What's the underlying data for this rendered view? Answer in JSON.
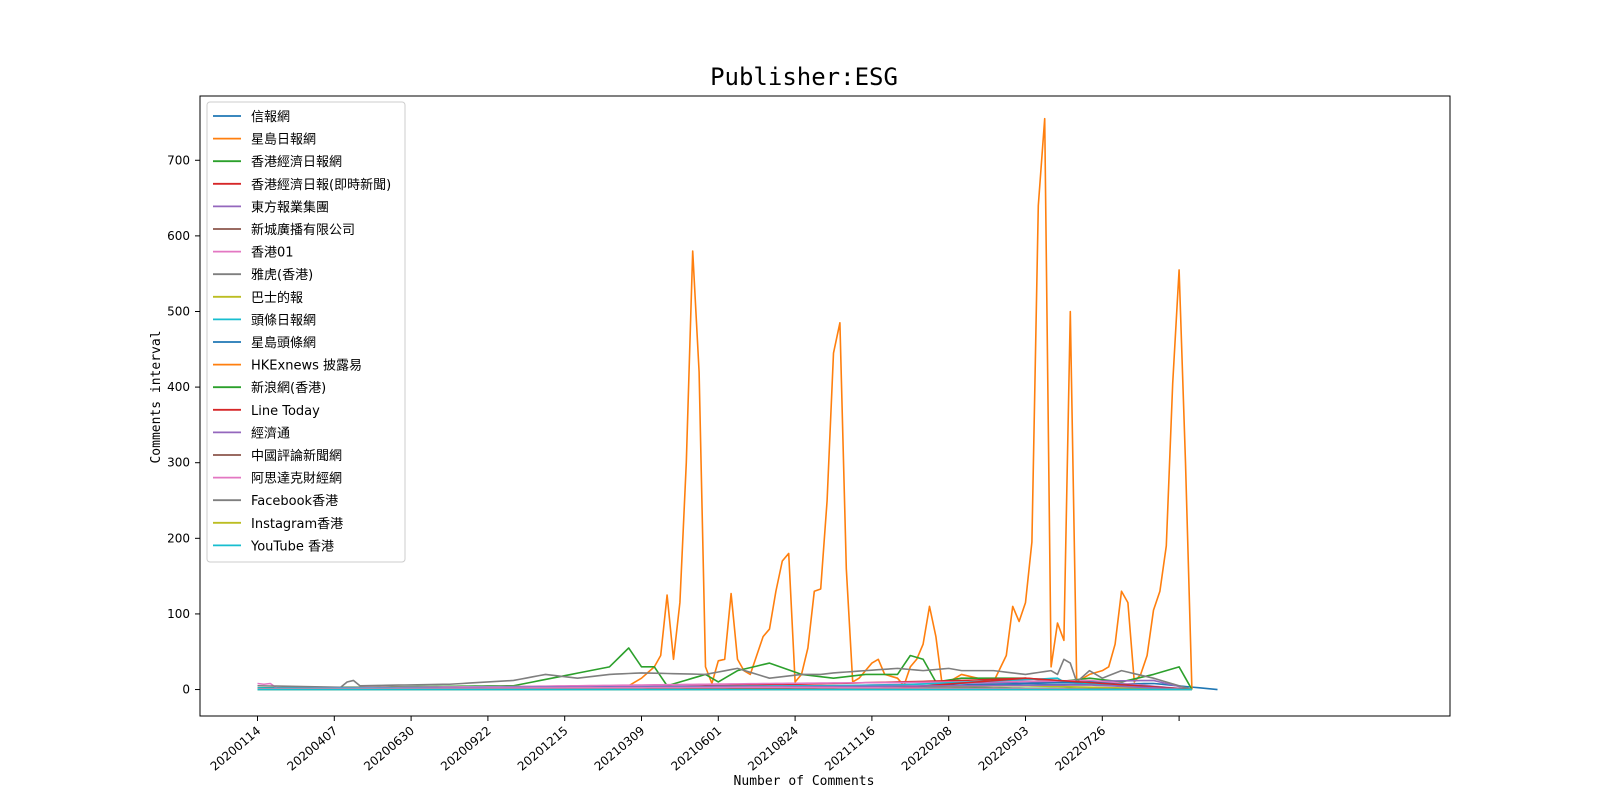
{
  "chart_data": {
    "type": "line",
    "title": "Publisher:ESG",
    "xlabel": "Number of Comments",
    "ylabel": "Comments interval",
    "ylim": [
      -35,
      785
    ],
    "yticks": [
      0,
      100,
      200,
      300,
      400,
      500,
      600,
      700
    ],
    "x_tick_labels": [
      "20200114",
      "20200407",
      "20200630",
      "20200922",
      "20201215",
      "20210309",
      "20210601",
      "20210824",
      "20211116",
      "20220208",
      "20220503",
      "20220726",
      ""
    ],
    "x_point_count": 151,
    "grid": false,
    "legend": "upper left",
    "colors": [
      "#1f77b4",
      "#ff7f0e",
      "#2ca02c",
      "#d62728",
      "#9467bd",
      "#8c564b",
      "#e377c2",
      "#7f7f7f",
      "#bcbd22",
      "#17becf"
    ],
    "series": [
      {
        "name": "信報網",
        "values": [
          [
            0,
            2
          ],
          [
            30,
            2
          ],
          [
            60,
            4
          ],
          [
            90,
            3
          ],
          [
            100,
            2
          ],
          [
            120,
            6
          ],
          [
            140,
            8
          ],
          [
            150,
            0
          ]
        ]
      },
      {
        "name": "星島日報網",
        "values": [
          [
            0,
            1
          ],
          [
            55,
            2
          ],
          [
            58,
            5
          ],
          [
            60,
            15
          ],
          [
            62,
            30
          ],
          [
            63,
            45
          ],
          [
            64,
            125
          ],
          [
            65,
            40
          ],
          [
            66,
            115
          ],
          [
            67,
            300
          ],
          [
            68,
            580
          ],
          [
            69,
            420
          ],
          [
            70,
            30
          ],
          [
            71,
            8
          ],
          [
            72,
            38
          ],
          [
            73,
            40
          ],
          [
            74,
            127
          ],
          [
            75,
            40
          ],
          [
            76,
            25
          ],
          [
            77,
            20
          ],
          [
            78,
            45
          ],
          [
            79,
            70
          ],
          [
            80,
            80
          ],
          [
            81,
            130
          ],
          [
            82,
            170
          ],
          [
            83,
            180
          ],
          [
            84,
            10
          ],
          [
            85,
            20
          ],
          [
            86,
            55
          ],
          [
            87,
            130
          ],
          [
            88,
            133
          ],
          [
            89,
            250
          ],
          [
            90,
            445
          ],
          [
            91,
            485
          ],
          [
            92,
            160
          ],
          [
            93,
            10
          ],
          [
            94,
            15
          ],
          [
            96,
            35
          ],
          [
            97,
            40
          ],
          [
            98,
            20
          ],
          [
            100,
            15
          ],
          [
            101,
            5
          ],
          [
            102,
            30
          ],
          [
            103,
            40
          ],
          [
            104,
            60
          ],
          [
            105,
            110
          ],
          [
            106,
            70
          ],
          [
            107,
            5
          ],
          [
            110,
            20
          ],
          [
            115,
            10
          ],
          [
            117,
            45
          ],
          [
            118,
            110
          ],
          [
            119,
            90
          ],
          [
            120,
            115
          ],
          [
            121,
            195
          ],
          [
            122,
            640
          ],
          [
            123,
            755
          ],
          [
            124,
            30
          ],
          [
            125,
            88
          ],
          [
            126,
            65
          ],
          [
            127,
            500
          ],
          [
            128,
            10
          ],
          [
            130,
            20
          ],
          [
            132,
            25
          ],
          [
            133,
            30
          ],
          [
            134,
            60
          ],
          [
            135,
            130
          ],
          [
            136,
            115
          ],
          [
            137,
            10
          ],
          [
            138,
            20
          ],
          [
            139,
            45
          ],
          [
            140,
            105
          ],
          [
            141,
            130
          ],
          [
            142,
            190
          ],
          [
            143,
            405
          ],
          [
            144,
            555
          ],
          [
            145,
            300
          ],
          [
            146,
            0
          ]
        ]
      },
      {
        "name": "香港經濟日報網",
        "values": [
          [
            0,
            2
          ],
          [
            40,
            5
          ],
          [
            52,
            25
          ],
          [
            55,
            30
          ],
          [
            58,
            55
          ],
          [
            60,
            30
          ],
          [
            62,
            30
          ],
          [
            64,
            5
          ],
          [
            70,
            20
          ],
          [
            72,
            10
          ],
          [
            75,
            25
          ],
          [
            80,
            35
          ],
          [
            85,
            20
          ],
          [
            90,
            15
          ],
          [
            95,
            20
          ],
          [
            100,
            20
          ],
          [
            102,
            45
          ],
          [
            104,
            40
          ],
          [
            106,
            10
          ],
          [
            110,
            15
          ],
          [
            120,
            15
          ],
          [
            125,
            10
          ],
          [
            130,
            15
          ],
          [
            135,
            10
          ],
          [
            140,
            20
          ],
          [
            144,
            30
          ],
          [
            146,
            0
          ]
        ]
      },
      {
        "name": "香港經濟日報(即時新聞)",
        "values": [
          [
            0,
            1
          ],
          [
            50,
            2
          ],
          [
            90,
            8
          ],
          [
            110,
            12
          ],
          [
            120,
            15
          ],
          [
            130,
            8
          ],
          [
            146,
            0
          ]
        ]
      },
      {
        "name": "東方報業集團",
        "values": [
          [
            0,
            1
          ],
          [
            60,
            4
          ],
          [
            90,
            5
          ],
          [
            120,
            10
          ],
          [
            140,
            12
          ],
          [
            146,
            0
          ]
        ]
      },
      {
        "name": "新城廣播有限公司",
        "values": [
          [
            0,
            1
          ],
          [
            70,
            2
          ],
          [
            100,
            3
          ],
          [
            146,
            0
          ]
        ]
      },
      {
        "name": "香港01",
        "values": [
          [
            0,
            8
          ],
          [
            1,
            7
          ],
          [
            2,
            8
          ],
          [
            3,
            2
          ],
          [
            40,
            4
          ],
          [
            80,
            8
          ],
          [
            110,
            10
          ],
          [
            130,
            12
          ],
          [
            146,
            0
          ]
        ]
      },
      {
        "name": "雅虎(香港)",
        "values": [
          [
            0,
            5
          ],
          [
            13,
            3
          ],
          [
            14,
            10
          ],
          [
            15,
            12
          ],
          [
            16,
            5
          ],
          [
            30,
            7
          ],
          [
            40,
            12
          ],
          [
            45,
            20
          ],
          [
            50,
            15
          ],
          [
            55,
            20
          ],
          [
            60,
            22
          ],
          [
            70,
            20
          ],
          [
            75,
            28
          ],
          [
            80,
            15
          ],
          [
            85,
            20
          ],
          [
            88,
            20
          ],
          [
            90,
            22
          ],
          [
            95,
            25
          ],
          [
            100,
            28
          ],
          [
            104,
            25
          ],
          [
            108,
            28
          ],
          [
            110,
            25
          ],
          [
            115,
            25
          ],
          [
            120,
            20
          ],
          [
            124,
            25
          ],
          [
            125,
            20
          ],
          [
            126,
            40
          ],
          [
            127,
            35
          ],
          [
            128,
            10
          ],
          [
            130,
            25
          ],
          [
            132,
            15
          ],
          [
            135,
            25
          ],
          [
            140,
            15
          ],
          [
            146,
            0
          ]
        ]
      },
      {
        "name": "巴士的報",
        "values": [
          [
            0,
            1
          ],
          [
            80,
            3
          ],
          [
            120,
            5
          ],
          [
            146,
            0
          ]
        ]
      },
      {
        "name": "頭條日報網",
        "values": [
          [
            0,
            2
          ],
          [
            60,
            3
          ],
          [
            100,
            6
          ],
          [
            125,
            15
          ],
          [
            126,
            10
          ],
          [
            146,
            0
          ]
        ]
      },
      {
        "name": "星島頭條網",
        "values": [
          [
            0,
            1
          ],
          [
            50,
            3
          ],
          [
            100,
            4
          ],
          [
            130,
            10
          ],
          [
            146,
            0
          ]
        ]
      },
      {
        "name": "HKExnews 披露易",
        "values": [
          [
            0,
            1
          ],
          [
            100,
            2
          ],
          [
            146,
            0
          ]
        ]
      },
      {
        "name": "新浪網(香港)",
        "values": [
          [
            0,
            1
          ],
          [
            60,
            2
          ],
          [
            100,
            3
          ],
          [
            146,
            0
          ]
        ]
      },
      {
        "name": "Line Today",
        "values": [
          [
            0,
            0
          ],
          [
            100,
            2
          ],
          [
            120,
            15
          ],
          [
            146,
            0
          ]
        ]
      },
      {
        "name": "經濟通",
        "values": [
          [
            0,
            1
          ],
          [
            90,
            4
          ],
          [
            130,
            6
          ],
          [
            146,
            0
          ]
        ]
      },
      {
        "name": "中國評論新聞網",
        "values": [
          [
            0,
            0
          ],
          [
            146,
            0
          ]
        ]
      },
      {
        "name": "阿思達克財經網",
        "values": [
          [
            0,
            1
          ],
          [
            80,
            3
          ],
          [
            146,
            0
          ]
        ]
      },
      {
        "name": "Facebook香港",
        "values": [
          [
            0,
            0
          ],
          [
            146,
            0
          ]
        ]
      },
      {
        "name": "Instagram香港",
        "values": [
          [
            0,
            0
          ],
          [
            146,
            0
          ]
        ]
      },
      {
        "name": "YouTube 香港",
        "values": [
          [
            0,
            0
          ],
          [
            146,
            0
          ]
        ]
      }
    ]
  }
}
